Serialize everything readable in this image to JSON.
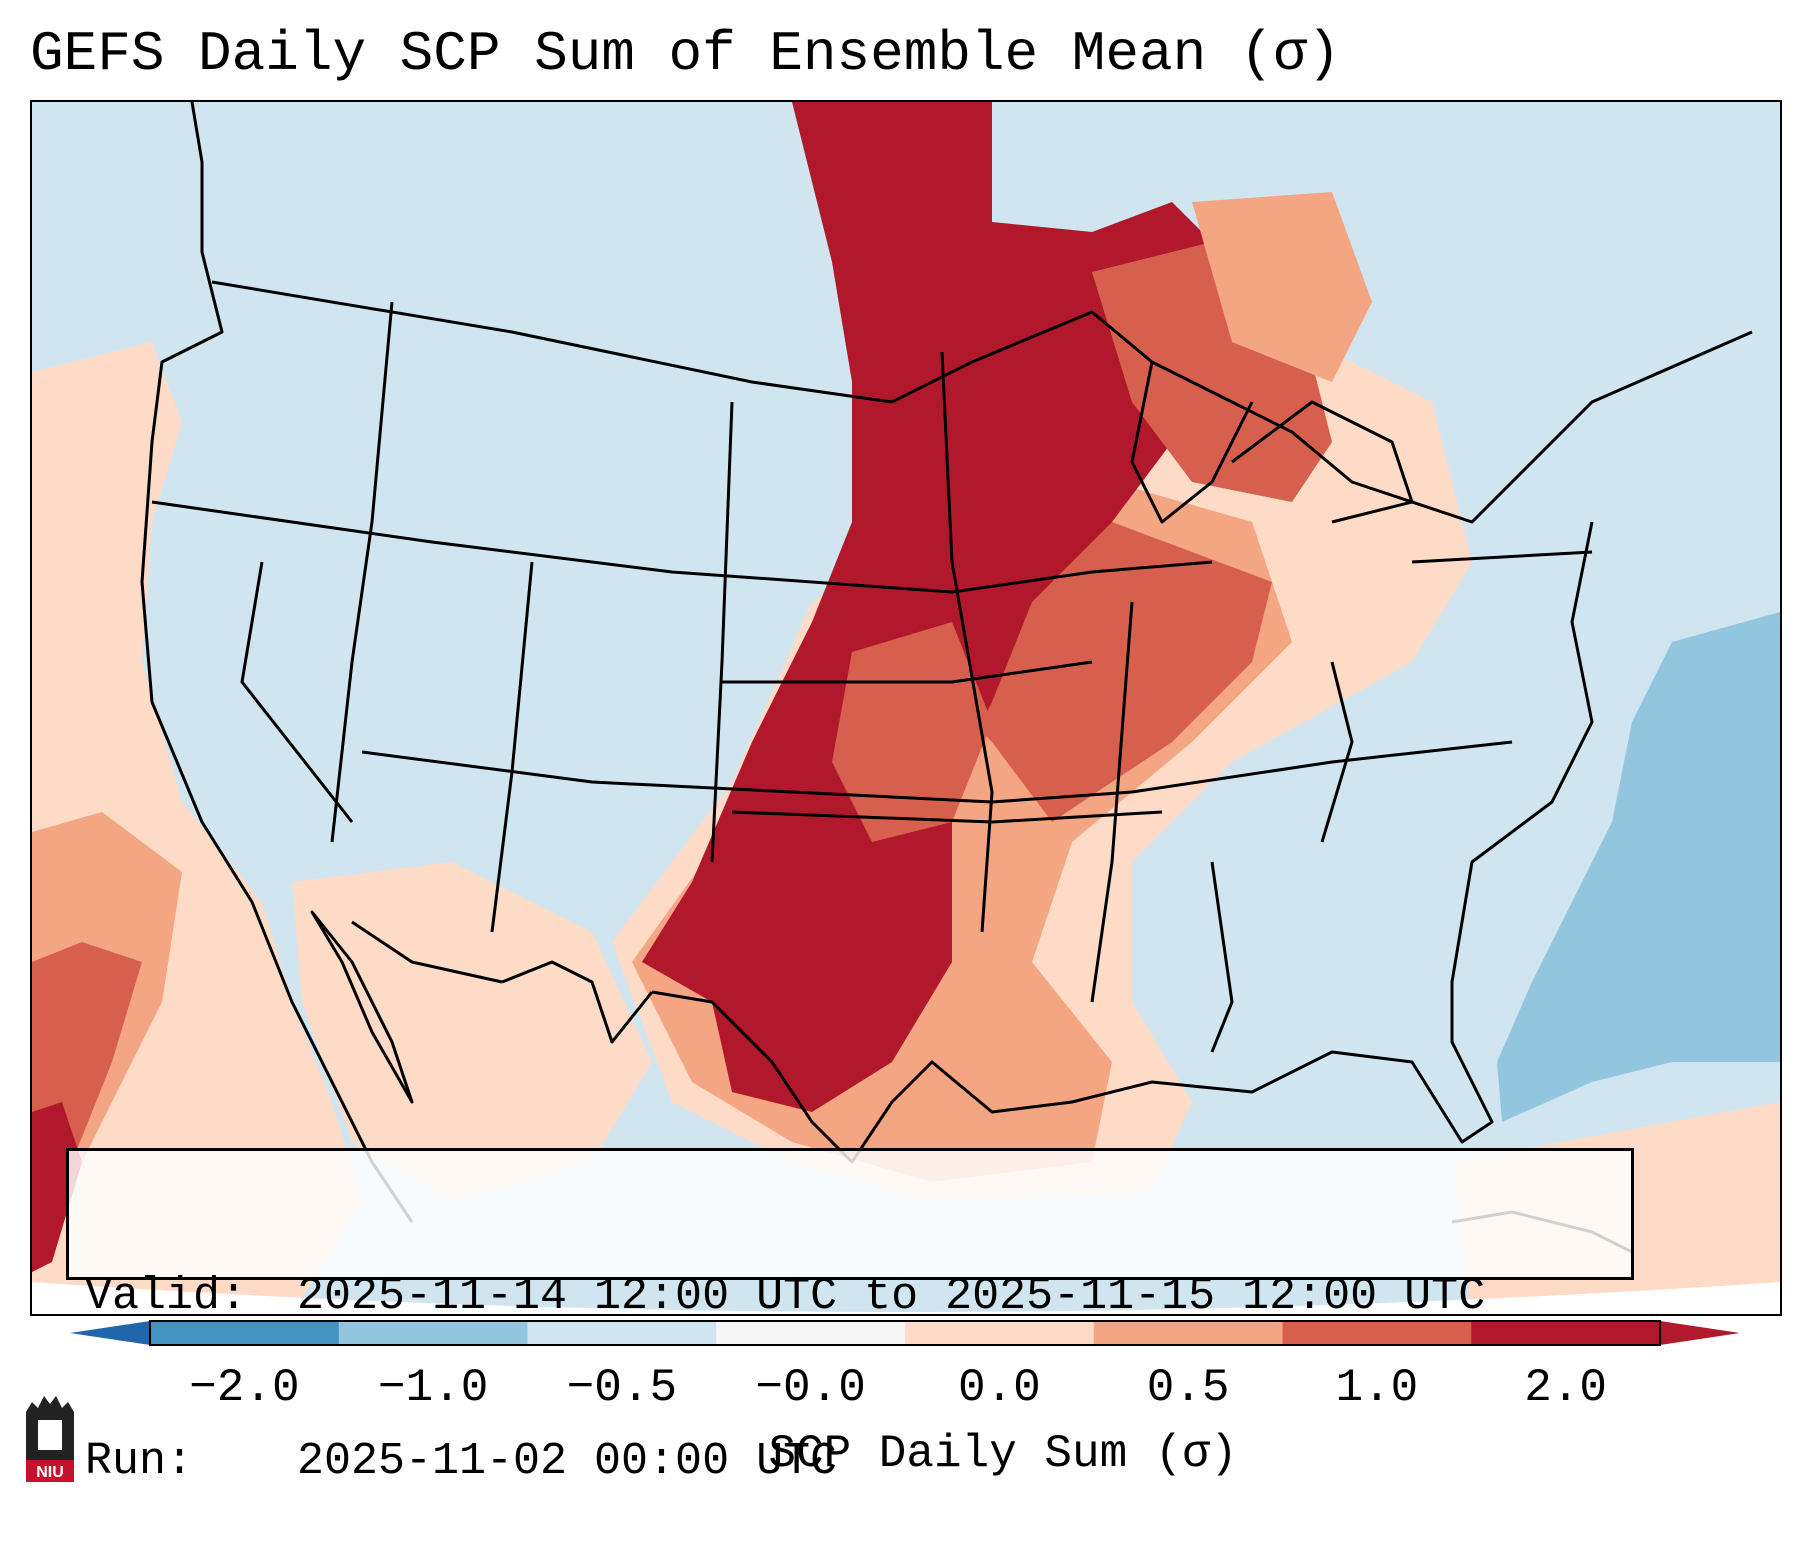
{
  "title": "GEFS Daily SCP Sum of Ensemble Mean (σ)",
  "info": {
    "valid_label": "Valid:",
    "valid_value": "2025-11-14 12:00 UTC to 2025-11-15 12:00 UTC",
    "run_label": "Run:",
    "run_value": "2025-11-02 00:00 UTC"
  },
  "colorbar": {
    "label": "SCP Daily Sum (σ)",
    "ticks": [
      "−2.0",
      "−1.0",
      "−0.5",
      "−0.0",
      "0.0",
      "0.5",
      "1.0",
      "2.0"
    ],
    "colors": [
      "#4393c3",
      "#92c5de",
      "#d1e5f0",
      "#f7f7f7",
      "#fddbc7",
      "#f4a582",
      "#d6604d",
      "#b2182b"
    ],
    "extend_low_color": "#2166ac",
    "extend_high_color": "#b2182b"
  },
  "logo": {
    "text": "NIU",
    "color": "#c8102e"
  }
}
